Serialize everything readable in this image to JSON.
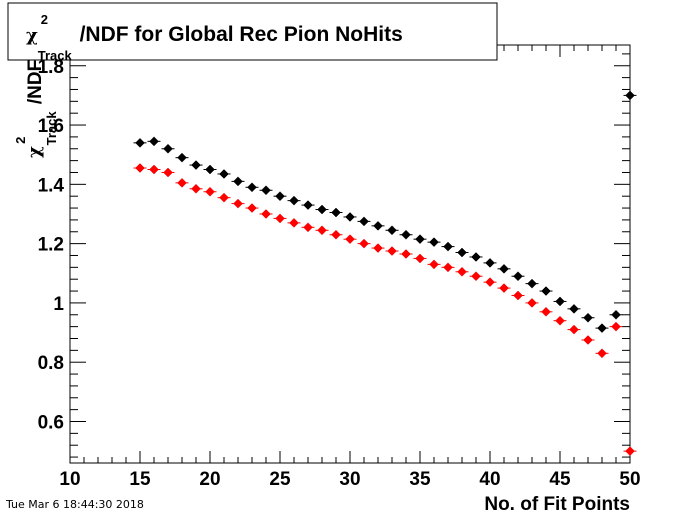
{
  "chart_data": {
    "type": "scatter",
    "title_symbol": "χ",
    "title_superscript": "2",
    "title_subscript": "Track",
    "title_suffix": "/NDF for Global Rec Pion NoHits",
    "xlabel": "No. of Fit Points",
    "ylabel_symbol": "χ",
    "ylabel_superscript": "2",
    "ylabel_subscript": "Track",
    "ylabel_suffix": "/NDF",
    "xlim": [
      10,
      50
    ],
    "ylim": [
      0.46,
      1.87
    ],
    "x_ticks": [
      10,
      15,
      20,
      25,
      30,
      35,
      40,
      45,
      50
    ],
    "y_ticks": [
      0.6,
      0.8,
      1,
      1.2,
      1.4,
      1.6,
      1.8
    ],
    "x_tick_labels": [
      "10",
      "15",
      "20",
      "25",
      "30",
      "35",
      "40",
      "45",
      "50"
    ],
    "y_tick_labels": [
      "0.6",
      "0.8",
      "1",
      "1.2",
      "1.4",
      "1.6",
      "1.8"
    ],
    "grid": false,
    "legend": "none",
    "series": [
      {
        "color": "#000000",
        "x": [
          15,
          16,
          17,
          18,
          19,
          20,
          21,
          22,
          23,
          24,
          25,
          26,
          27,
          28,
          29,
          30,
          31,
          32,
          33,
          34,
          35,
          36,
          37,
          38,
          39,
          40,
          41,
          42,
          43,
          44,
          45,
          46,
          47,
          48,
          49,
          50
        ],
        "y": [
          1.54,
          1.545,
          1.52,
          1.49,
          1.465,
          1.45,
          1.435,
          1.41,
          1.39,
          1.38,
          1.36,
          1.345,
          1.33,
          1.315,
          1.305,
          1.29,
          1.275,
          1.26,
          1.245,
          1.23,
          1.215,
          1.205,
          1.19,
          1.17,
          1.155,
          1.135,
          1.115,
          1.09,
          1.065,
          1.04,
          1.005,
          0.98,
          0.95,
          0.915,
          0.96,
          1.7
        ],
        "yerr": [
          0.008,
          0.008,
          0.006,
          0.005,
          0.004,
          0.004,
          0.004,
          0.004,
          0.004,
          0.004,
          0.004,
          0.004,
          0.004,
          0.004,
          0.004,
          0.004,
          0.004,
          0.004,
          0.004,
          0.004,
          0.004,
          0.004,
          0.004,
          0.004,
          0.004,
          0.004,
          0.004,
          0.004,
          0.004,
          0.004,
          0.004,
          0.004,
          0.004,
          0.004,
          0.012,
          0.004
        ]
      },
      {
        "color": "#ff0000",
        "x": [
          15,
          16,
          17,
          18,
          19,
          20,
          21,
          22,
          23,
          24,
          25,
          26,
          27,
          28,
          29,
          30,
          31,
          32,
          33,
          34,
          35,
          36,
          37,
          38,
          39,
          40,
          41,
          42,
          43,
          44,
          45,
          46,
          47,
          48,
          49,
          50
        ],
        "y": [
          1.455,
          1.45,
          1.44,
          1.405,
          1.385,
          1.375,
          1.355,
          1.335,
          1.32,
          1.3,
          1.285,
          1.27,
          1.255,
          1.245,
          1.23,
          1.215,
          1.2,
          1.185,
          1.175,
          1.165,
          1.15,
          1.13,
          1.12,
          1.105,
          1.09,
          1.07,
          1.05,
          1.025,
          1.0,
          0.97,
          0.94,
          0.91,
          0.875,
          0.83,
          0.92,
          0.5
        ],
        "yerr": [
          0.005,
          0.005,
          0.004,
          0.004,
          0.003,
          0.003,
          0.003,
          0.003,
          0.003,
          0.003,
          0.003,
          0.003,
          0.003,
          0.003,
          0.003,
          0.003,
          0.003,
          0.003,
          0.003,
          0.003,
          0.003,
          0.003,
          0.003,
          0.003,
          0.003,
          0.003,
          0.003,
          0.003,
          0.003,
          0.003,
          0.003,
          0.003,
          0.003,
          0.003,
          0.01,
          0.003
        ]
      }
    ]
  },
  "timestamp": "Tue Mar  6 18:44:30 2018"
}
